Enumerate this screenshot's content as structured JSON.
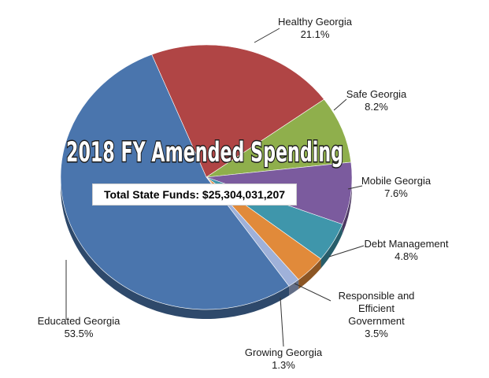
{
  "chart_data": {
    "type": "pie",
    "title": "2018 FY Amended Spending",
    "subtitle": "Total State Funds: $25,304,031,207",
    "slices": [
      {
        "name": "Healthy Georgia",
        "value": 21.1,
        "label": "21.1%",
        "color": "#b04545"
      },
      {
        "name": "Safe Georgia",
        "value": 8.2,
        "label": "8.2%",
        "color": "#8faf4c"
      },
      {
        "name": "Mobile Georgia",
        "value": 7.6,
        "label": "7.6%",
        "color": "#7b5b9e"
      },
      {
        "name": "Debt Management",
        "value": 4.8,
        "label": "4.8%",
        "color": "#3f96ab"
      },
      {
        "name": "Responsible and Efficient Government",
        "value": 3.5,
        "label": "3.5%",
        "color": "#e18a3a"
      },
      {
        "name": "Growing Georgia",
        "value": 1.3,
        "label": "1.3%",
        "color": "#9fb1d9"
      },
      {
        "name": "Educated Georgia",
        "value": 53.5,
        "label": "53.5%",
        "color": "#4a75ad"
      }
    ]
  }
}
